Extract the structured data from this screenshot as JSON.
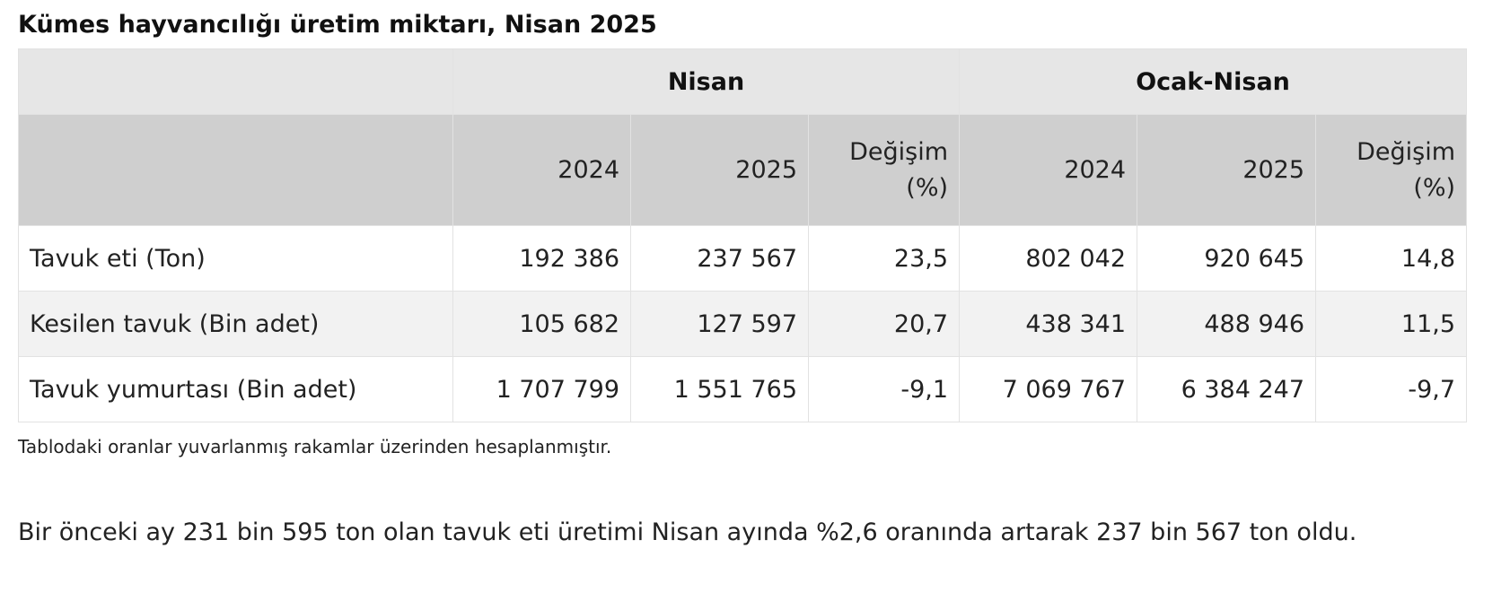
{
  "title": "Kümes hayvancılığı üretim miktarı, Nisan 2025",
  "table": {
    "groups": [
      "Nisan",
      "Ocak-Nisan"
    ],
    "subheaders": [
      "2024",
      "2025",
      "Değişim\n(%)",
      "2024",
      "2025",
      "Değişim\n(%)"
    ],
    "rows": [
      {
        "label": "Tavuk eti (Ton)",
        "values": [
          "192 386",
          "237 567",
          "23,5",
          "802 042",
          "920 645",
          "14,8"
        ]
      },
      {
        "label": "Kesilen tavuk (Bin adet)",
        "values": [
          "105 682",
          "127 597",
          "20,7",
          "438 341",
          "488 946",
          "11,5"
        ]
      },
      {
        "label": "Tavuk yumurtası (Bin adet)",
        "values": [
          "1 707 799",
          "1 551 765",
          "-9,1",
          "7 069 767",
          "6 384 247",
          "-9,7"
        ]
      }
    ]
  },
  "note": "Tablodaki oranlar yuvarlanmış rakamlar üzerinden hesaplanmıştır.",
  "paragraph": "Bir önceki ay 231 bin 595 ton olan tavuk eti üretimi Nisan ayında %2,6 oranında artarak 237 bin 567 ton oldu."
}
